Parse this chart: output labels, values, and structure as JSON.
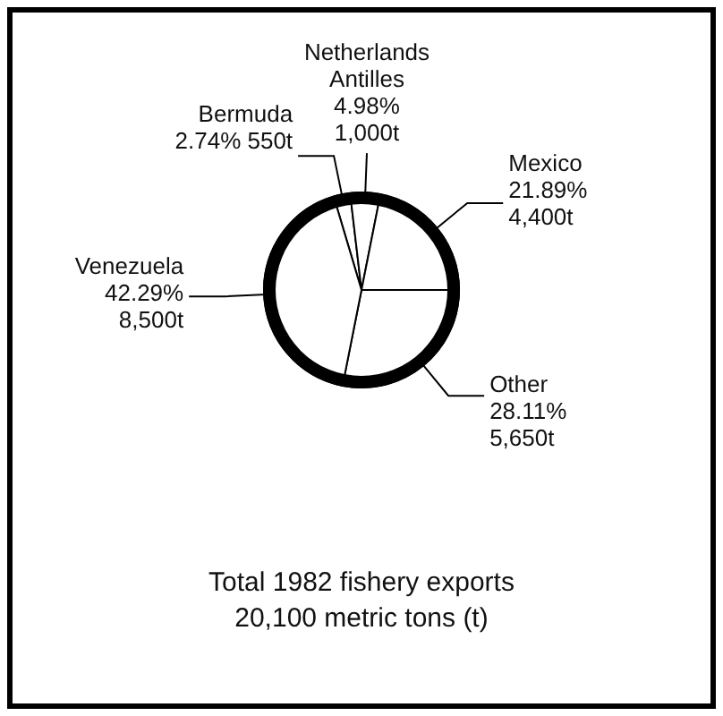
{
  "chart_data": {
    "type": "pie",
    "title": "Total 1982 fishery exports",
    "subtitle": "20,100 metric tons (t)",
    "categories": [
      "Bermuda",
      "Netherlands Antilles",
      "Mexico",
      "Other",
      "Venezuela"
    ],
    "values": [
      2.74,
      4.98,
      21.89,
      28.11,
      42.29
    ],
    "value_labels": [
      "2.74% 550t",
      "4.98% 1,000t",
      "21.89% 4,400t",
      "28.11% 5,650t",
      "42.29% 8,500t"
    ],
    "colors": [
      "#ffffff",
      "#ffffff",
      "#ffffff",
      "#ffffff",
      "#ffffff"
    ],
    "legend": false
  }
}
